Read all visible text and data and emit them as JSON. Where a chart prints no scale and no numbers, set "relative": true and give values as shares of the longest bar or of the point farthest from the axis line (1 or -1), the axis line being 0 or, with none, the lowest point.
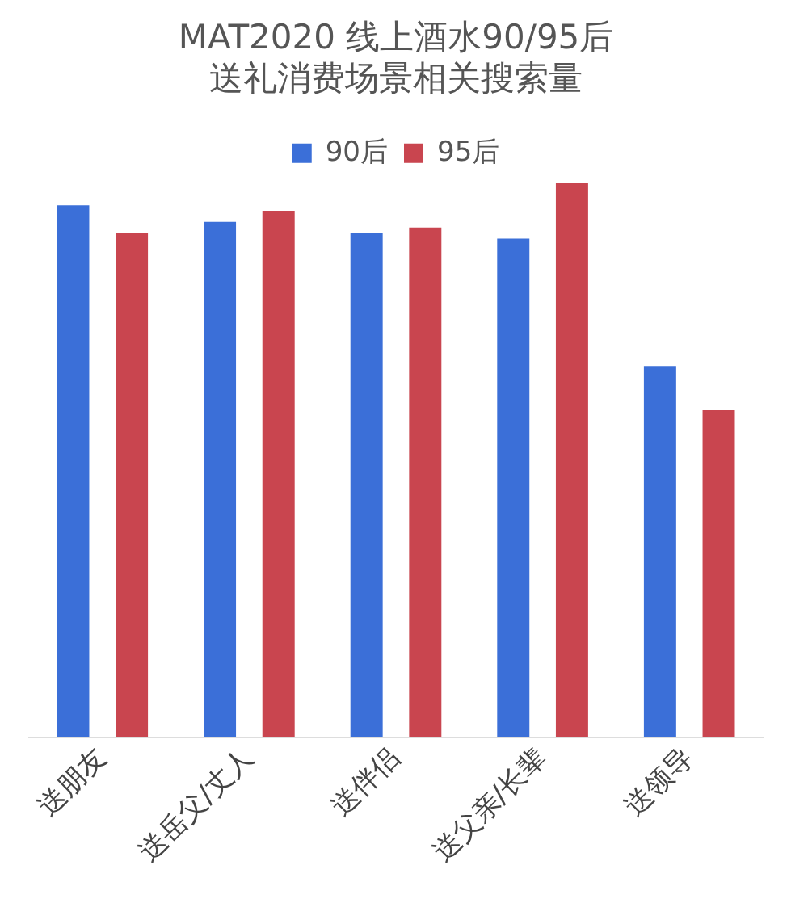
{
  "chart_data": {
    "type": "bar",
    "relative": true,
    "title": "MAT2020 线上酒水90/95后送礼消费场景相关搜索量",
    "categories": [
      "送朋友",
      "送岳父/丈人",
      "送伴侣",
      "送父亲/长辈",
      "送领导"
    ],
    "series": [
      {
        "name": "90后",
        "color": "#3b6fd8",
        "values": [
          0.96,
          0.93,
          0.91,
          0.9,
          0.67
        ]
      },
      {
        "name": "95后",
        "color": "#c9454f",
        "values": [
          0.91,
          0.95,
          0.92,
          1,
          0.59
        ]
      }
    ],
    "legend": "top",
    "grid": false
  }
}
